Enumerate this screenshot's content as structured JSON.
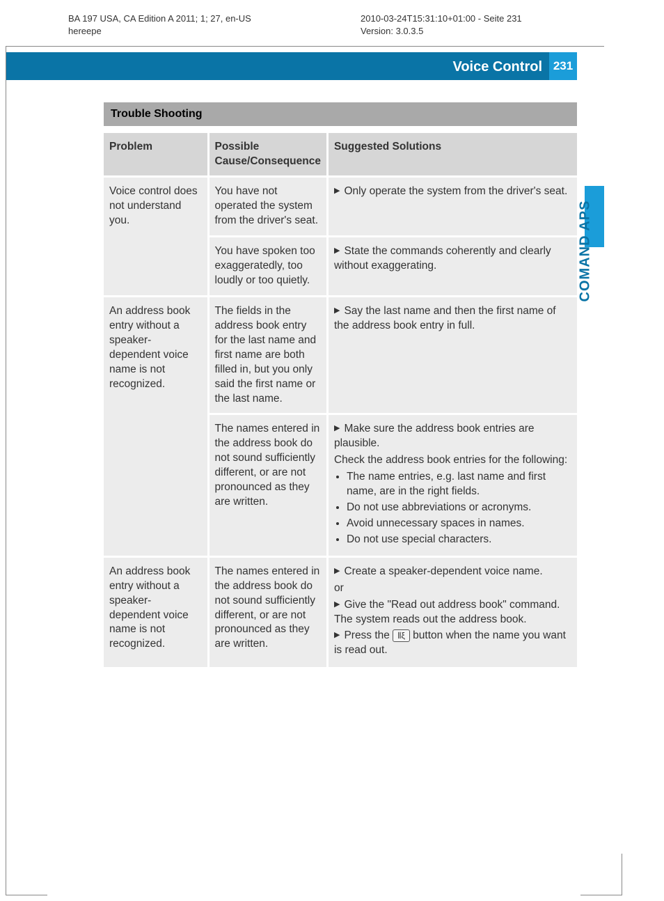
{
  "meta": {
    "left_line1": "BA 197 USA, CA Edition A 2011; 1; 27, en-US",
    "left_line2": "hereepe",
    "right_line1": "2010-03-24T15:31:10+01:00 - Seite 231",
    "right_line2": "Version: 3.0.3.5"
  },
  "header": {
    "title": "Voice Control",
    "page_number": "231",
    "side_label": "COMAND APS",
    "band_color": "#0a74a6",
    "accent_color": "#1b9dd9"
  },
  "section": {
    "title": "Trouble Shooting"
  },
  "table": {
    "headers": {
      "problem": "Problem",
      "cause": "Possible Cause/Consequence",
      "solution": "Suggested Solutions"
    },
    "rows": [
      {
        "problem": "Voice control does not understand you.",
        "subrows": [
          {
            "cause": "You have not operated the system from the driver's seat.",
            "solutions": [
              {
                "type": "tri",
                "text": "Only operate the system from the driver's seat."
              }
            ]
          },
          {
            "cause": "You have spoken too exaggeratedly, too loudly or too quietly.",
            "solutions": [
              {
                "type": "tri",
                "text": "State the commands coherently and clearly without exaggerating."
              }
            ]
          }
        ]
      },
      {
        "problem": "An address book entry without a speaker-dependent voice name is not recognized.",
        "subrows": [
          {
            "cause": "The fields in the address book entry for the last name and first name are both filled in, but you only said the first name or the last name.",
            "solutions": [
              {
                "type": "tri",
                "text": "Say the last name and then the first name of the address book entry in full."
              }
            ]
          },
          {
            "cause": "The names entered in the address book do not sound sufficiently different, or are not pronounced as they are written.",
            "solutions": [
              {
                "type": "tri",
                "text": "Make sure the address book entries are plausible."
              },
              {
                "type": "plain",
                "text": "Check the address book entries for the following:"
              },
              {
                "type": "bullets",
                "items": [
                  "The name entries, e.g. last name and first name, are in the right fields.",
                  "Do not use abbreviations or acronyms.",
                  "Avoid unnecessary spaces in names.",
                  "Do not use special characters."
                ]
              }
            ]
          }
        ]
      },
      {
        "problem": "An address book entry without a speaker-dependent voice name is not recognized.",
        "subrows": [
          {
            "cause": "The names entered in the address book do not sound sufficiently different, or are not pronounced as they are written.",
            "solutions": [
              {
                "type": "tri",
                "text": "Create a speaker-dependent voice name."
              },
              {
                "type": "plain",
                "text": "or"
              },
              {
                "type": "tri",
                "text": "Give the \"Read out address book\" command. The system reads out the address book."
              },
              {
                "type": "tri-btn",
                "pre": "Press the ",
                "post": " button when the name you want is read out."
              }
            ]
          }
        ]
      }
    ]
  },
  "button_glyph": "⦀ξ"
}
